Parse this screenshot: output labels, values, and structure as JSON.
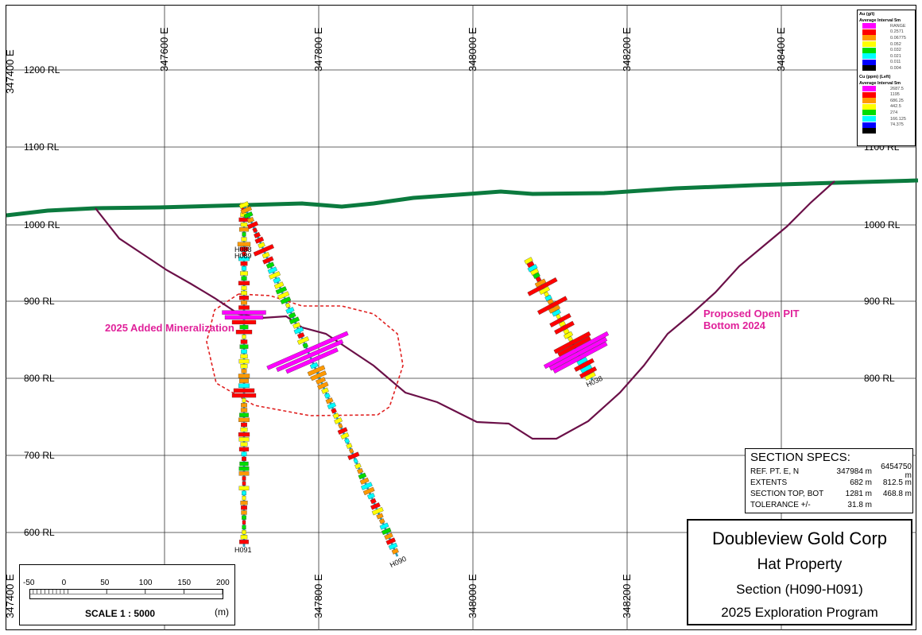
{
  "axes": {
    "easting": [
      "347400 E",
      "347600 E",
      "347800 E",
      "348000 E",
      "348200 E",
      "348400 E"
    ],
    "easting_bottom": [
      "347400 E",
      "347800 E",
      "348000 E",
      "348200 E"
    ],
    "rl": [
      "1200 RL",
      "1100 RL",
      "1000 RL",
      "900 RL",
      "800 RL",
      "700 RL",
      "600 RL"
    ],
    "rl_right": [
      "1100 RL",
      "1000 RL",
      "900 RL",
      "800 RL"
    ]
  },
  "annotations": {
    "added": "2025 Added Mineralization",
    "pit": "Proposed Open PIT Bottom 2024"
  },
  "holes": [
    "H088",
    "H089",
    "H090",
    "H091",
    "H038"
  ],
  "legend": {
    "au_title": "Au (g/t)",
    "au_sub": "Average Interval 5m",
    "au_range": "RANGE",
    "au_values": [
      "0.2571",
      "0.06775",
      "0.052",
      "0.032",
      "0.021",
      "0.011",
      "0.004"
    ],
    "cu_title": "Cu (ppm) (Left)",
    "cu_sub": "Average Interval 5m",
    "cu_values": [
      "2687.5",
      "1195",
      "686.25",
      "442.5",
      "274",
      "166.125",
      "74.375"
    ],
    "colors": [
      "#ff00ff",
      "#ff0000",
      "#ff9900",
      "#ffff00",
      "#00dd00",
      "#00ffff",
      "#0000ff",
      "#000000"
    ]
  },
  "specs": {
    "title": "SECTION  SPECS:",
    "rows": [
      {
        "label": "REF. PT.  E, N",
        "a": "347984 m",
        "b": "6454750 m"
      },
      {
        "label": "EXTENTS",
        "a": "682 m",
        "b": "812.5 m"
      },
      {
        "label": "SECTION TOP, BOT",
        "a": "1281 m",
        "b": "468.8 m"
      },
      {
        "label": "TOLERANCE  +/-",
        "a": "31.8 m",
        "b": ""
      }
    ]
  },
  "title_block": [
    "Doubleview Gold Corp",
    "Hat Property",
    "Section (H090-H091)",
    "2025 Exploration Program"
  ],
  "scale": {
    "ticks": [
      "-50",
      "0",
      "50",
      "100",
      "150",
      "200"
    ],
    "label": "SCALE  1 : 5000",
    "unit": "(m)"
  },
  "colors": {
    "topo": "#0b7a3e",
    "pit": "#6b1048",
    "annotation": "#e0219a"
  }
}
